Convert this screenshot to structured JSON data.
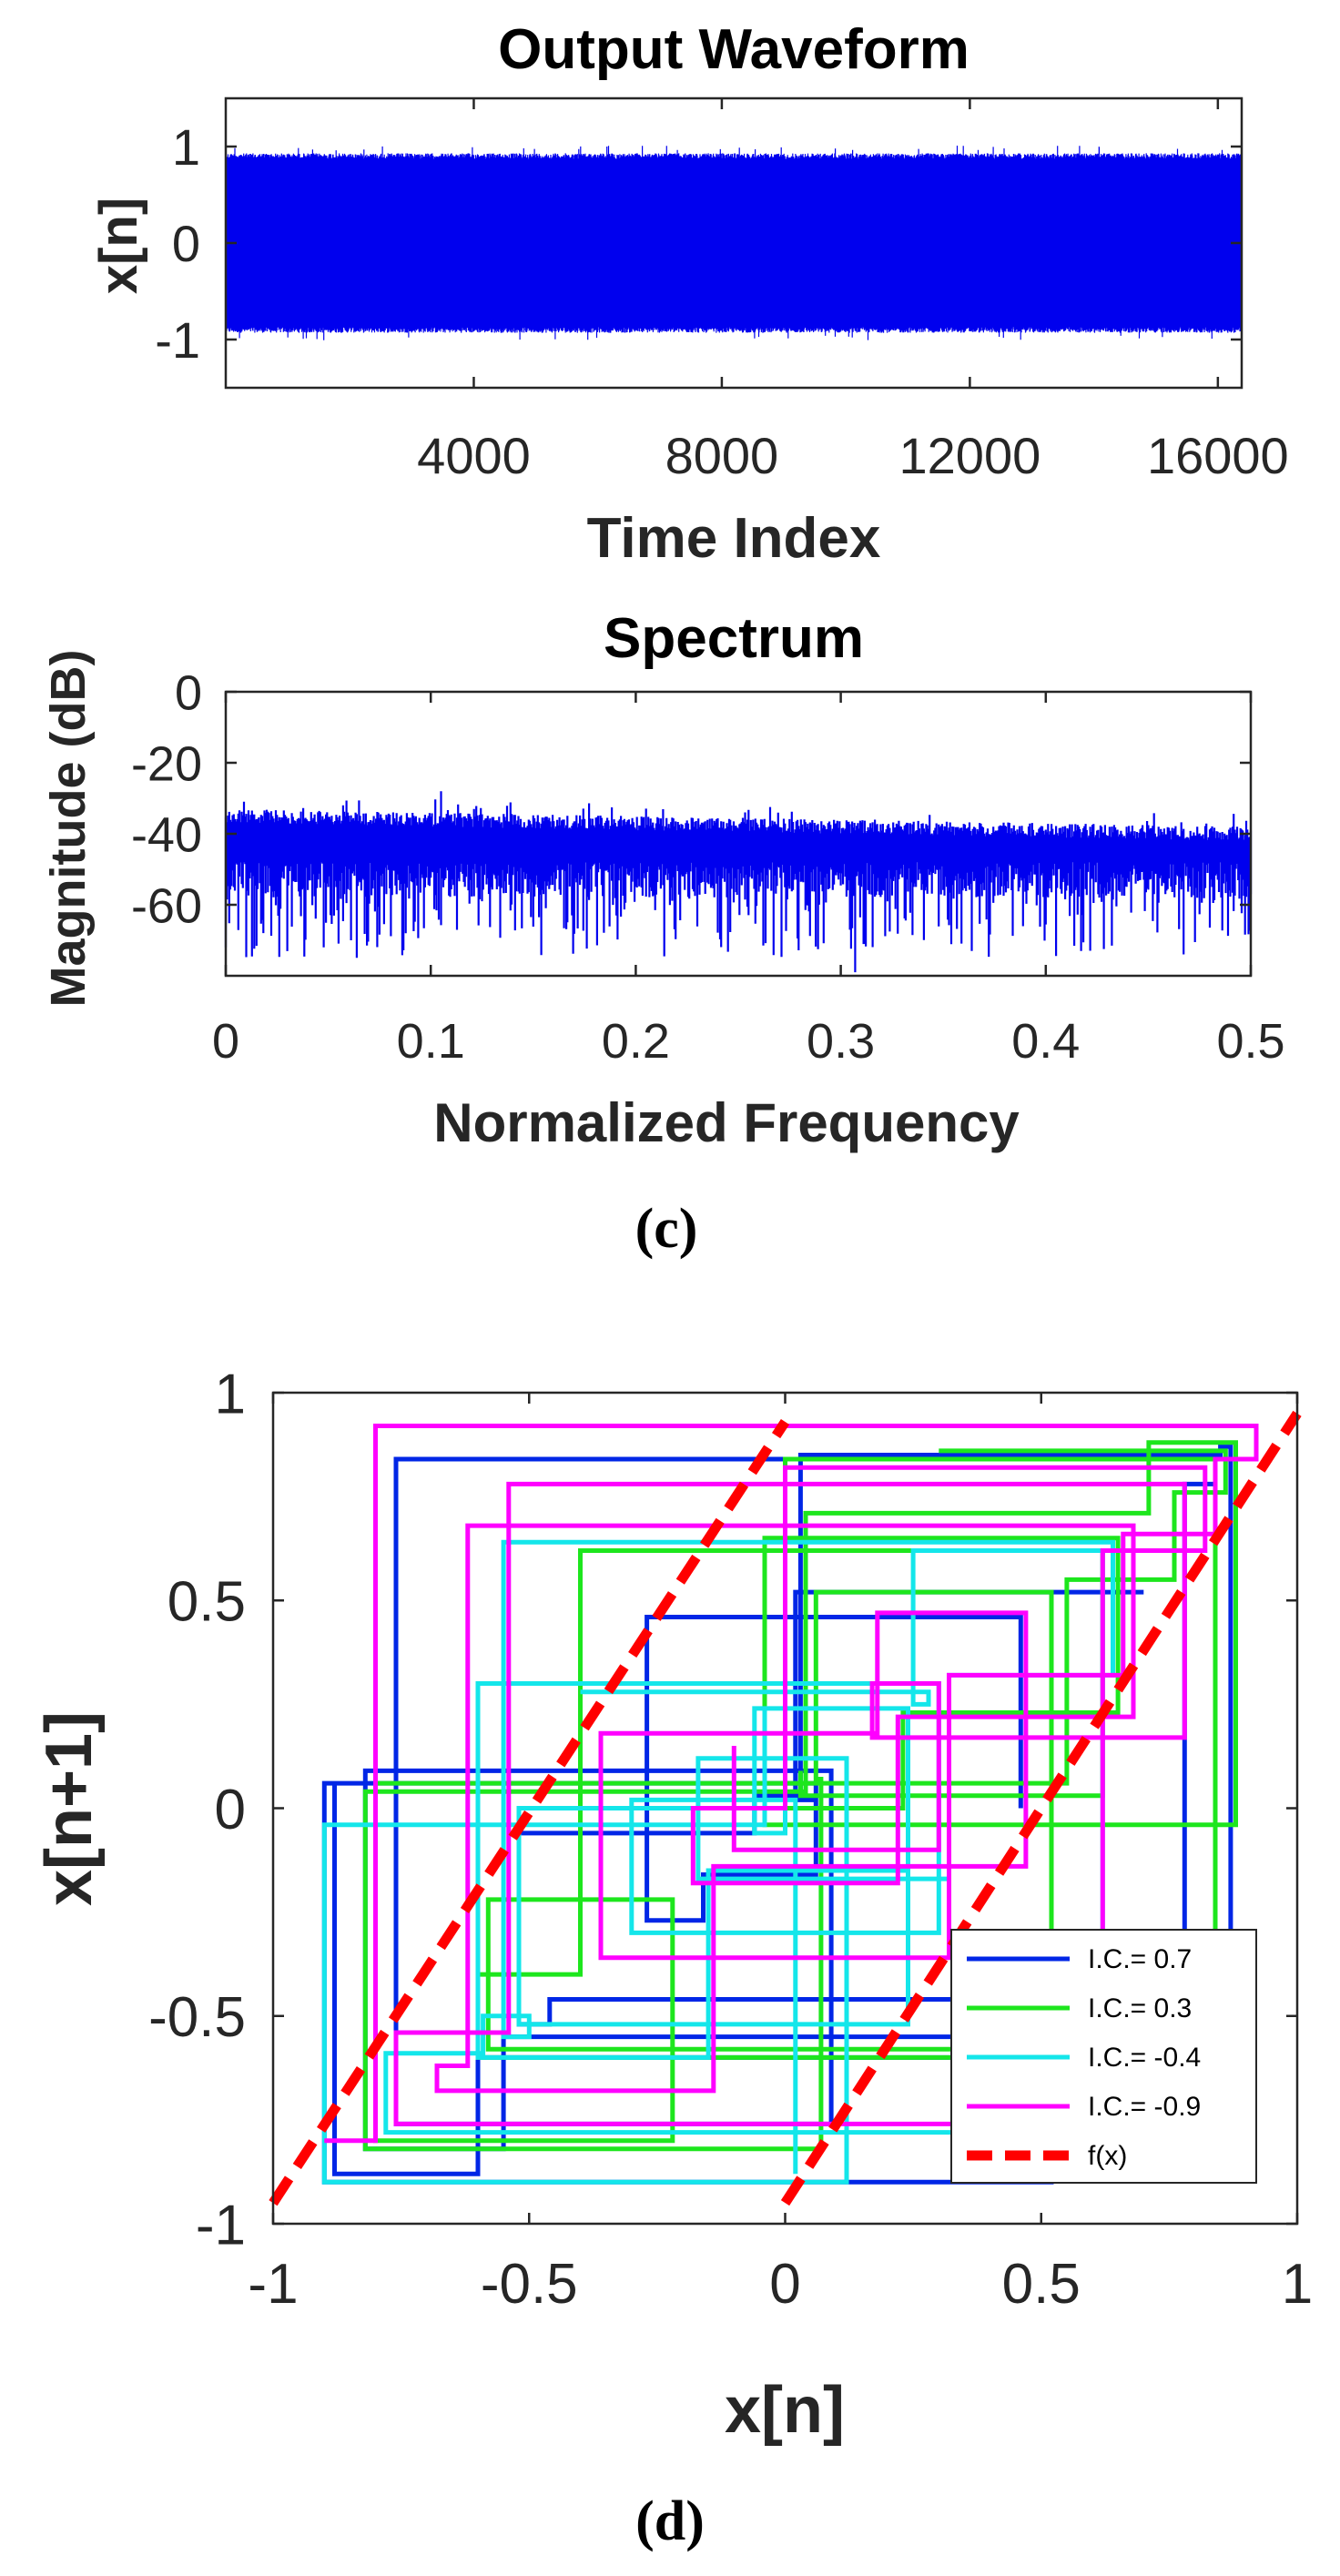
{
  "colors": {
    "signal": "#0000ee",
    "ic_0_7": "#0026e6",
    "ic_0_3": "#1de61d",
    "ic_m0_4": "#14e6ea",
    "ic_m0_9": "#ff00ff",
    "fx": "#ff0000",
    "axis": "#262626"
  },
  "chart_data": [
    {
      "type": "line",
      "title": "Output Waveform",
      "xlabel": "Time Index",
      "ylabel": "x[n]",
      "xlim": [
        0,
        16384
      ],
      "ylim": [
        -1.5,
        1.5
      ],
      "xticks": [
        4000,
        8000,
        12000,
        16000
      ],
      "xtick_labels": [
        "4000",
        "8000",
        "12000",
        "16000"
      ],
      "yticks": [
        1,
        0,
        -1
      ],
      "ytick_labels": [
        "1",
        "0",
        "-1"
      ],
      "series": [
        {
          "name": "x[n]",
          "description": "dense chaotic signal filling the band",
          "value_range": [
            -0.93,
            0.93
          ]
        }
      ]
    },
    {
      "type": "line",
      "title": "Spectrum",
      "xlabel": "Normalized Frequency",
      "ylabel": "Magnitude (dB)",
      "xlim": [
        0,
        0.5
      ],
      "ylim": [
        -80,
        0
      ],
      "xticks": [
        0,
        0.1,
        0.2,
        0.3,
        0.4,
        0.5
      ],
      "xtick_labels": [
        "0",
        "0.1",
        "0.2",
        "0.3",
        "0.4",
        "0.5"
      ],
      "yticks": [
        0,
        -20,
        -40,
        -60
      ],
      "ytick_labels": [
        "0",
        "-20",
        "-40",
        "-60"
      ],
      "series": [
        {
          "name": "Magnitude",
          "description": "flat noise-like spectrum",
          "upper_envelope_start": -33,
          "upper_envelope_end": -38,
          "lower_range": [
            -75,
            -45
          ]
        }
      ]
    },
    {
      "type": "line",
      "xlabel": "x[n]",
      "ylabel": "x[n+1]",
      "xlim": [
        -1,
        1
      ],
      "ylim": [
        -1,
        1
      ],
      "xticks": [
        -1,
        -0.5,
        0,
        0.5,
        1
      ],
      "xtick_labels": [
        "-1",
        "-0.5",
        "0",
        "0.5",
        "1"
      ],
      "yticks": [
        1,
        0.5,
        0,
        -0.5,
        -1
      ],
      "ytick_labels": [
        "1",
        "0.5",
        "0",
        "-0.5",
        "-1"
      ],
      "legend_position": "bottom-right",
      "series": [
        {
          "name": "I.C.= 0.7",
          "values": [
            0.7,
            0.52,
            -0.46,
            -0.52,
            -0.06,
            0.03,
            0.85,
            0.87,
            -0.55,
            -0.82,
            0.09,
            -0.76,
            0.84,
            0.78,
            -0.6,
            -0.88,
            0.06,
            0.02,
            0.52,
            -0.9,
            0.06,
            -0.16,
            -0.27,
            0.46,
            0.0
          ]
        },
        {
          "name": "I.C.= 0.3",
          "values": [
            0.3,
            0.86,
            0.76,
            0.55,
            0.06,
            0.52,
            -0.58,
            -0.22,
            -0.8,
            0.06,
            0.07,
            -0.82,
            0.04,
            0.71,
            0.88,
            -0.04,
            0.65,
            0.23,
            0.0,
            0.84,
            -0.6,
            -0.4,
            0.62,
            0.03,
            0.09
          ]
        },
        {
          "name": "I.C.= -0.4",
          "values": [
            -0.4,
            0.28,
            0.25,
            0.62,
            -0.78,
            -0.59,
            -0.5,
            -0.55,
            0.64,
            0.32,
            -0.17,
            0.12,
            -0.9,
            -0.04,
            0.24,
            -0.52,
            0.0,
            -0.06,
            0.24,
            -0.15,
            -0.6,
            0.3,
            -0.3,
            0.02,
            -0.88
          ]
        },
        {
          "name": "I.C.= -0.9",
          "values": [
            -0.9,
            -0.8,
            0.92,
            0.84,
            0.66,
            0.32,
            -0.36,
            0.18,
            0.47,
            -0.14,
            -0.68,
            -0.62,
            0.68,
            0.22,
            -0.18,
            0.0,
            0.82,
            0.62,
            -0.76,
            -0.54,
            0.78,
            0.17,
            0.3,
            -0.1,
            0.15
          ]
        },
        {
          "name": "f(x)",
          "style": "dashed",
          "description": "piecewise-linear map with slope 2 and jump at 0",
          "segments": [
            [
              [
                -1,
                -0.95
              ],
              [
                0,
                0.93
              ]
            ],
            [
              [
                0,
                -0.95
              ],
              [
                1,
                0.95
              ]
            ]
          ]
        }
      ]
    }
  ],
  "captions": {
    "c": "(c)",
    "d": "(d)"
  }
}
